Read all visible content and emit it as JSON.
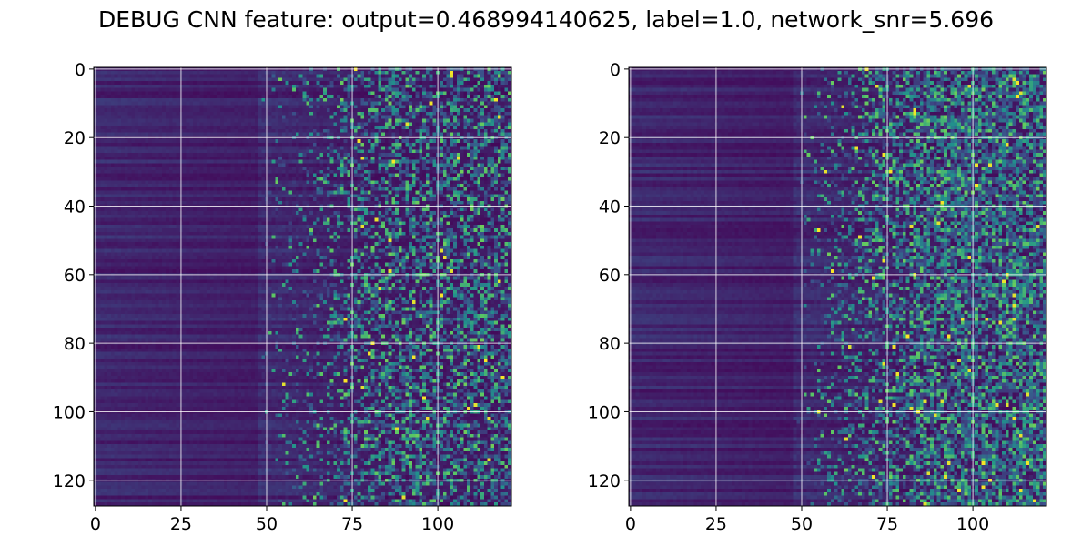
{
  "title": "DEBUG CNN feature: output=0.468994140625, label=1.0, network_snr=5.696",
  "colormap": {
    "name": "viridis",
    "stops": [
      "#440154",
      "#3b528b",
      "#21918c",
      "#5ec962",
      "#fde725"
    ]
  },
  "grid": {
    "on": true,
    "color": "#ffffff"
  },
  "chart_data": [
    {
      "type": "heatmap",
      "title": "",
      "xlabel": "",
      "ylabel": "",
      "rows": 128,
      "cols": 122,
      "xlim": [
        -0.5,
        121.5
      ],
      "ylim": [
        127.5,
        -0.5
      ],
      "x_ticks": [
        0,
        25,
        50,
        75,
        100
      ],
      "x_tick_labels": [
        "0",
        "25",
        "50",
        "75",
        "100"
      ],
      "y_ticks": [
        0,
        20,
        40,
        60,
        80,
        100,
        120
      ],
      "y_tick_labels": [
        "0",
        "20",
        "40",
        "60",
        "80",
        "100",
        "120"
      ],
      "pattern": "smooth low-valued horizontal bands for columns below ~50, sparse high-valued noisy cells increasing in density for columns above ~60",
      "seed": 7,
      "noise_density": 1.0
    },
    {
      "type": "heatmap",
      "title": "",
      "xlabel": "",
      "ylabel": "",
      "rows": 128,
      "cols": 122,
      "xlim": [
        -0.5,
        121.5
      ],
      "ylim": [
        127.5,
        -0.5
      ],
      "x_ticks": [
        0,
        25,
        50,
        75,
        100
      ],
      "x_tick_labels": [
        "0",
        "25",
        "50",
        "75",
        "100"
      ],
      "y_ticks": [
        0,
        20,
        40,
        60,
        80,
        100,
        120
      ],
      "y_tick_labels": [
        "0",
        "20",
        "40",
        "60",
        "80",
        "100",
        "120"
      ],
      "pattern": "smooth low-valued horizontal bands for columns below ~50, denser high-valued noisy cells for columns above ~60",
      "seed": 13,
      "noise_density": 1.35
    }
  ]
}
